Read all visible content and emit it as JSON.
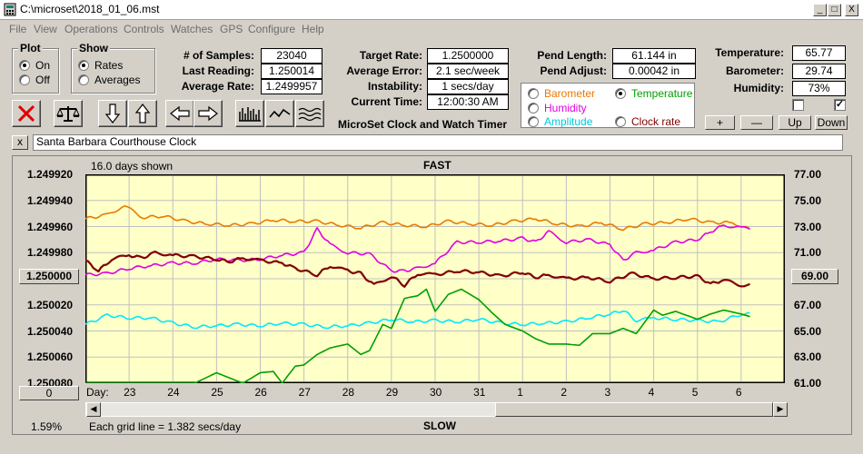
{
  "window": {
    "title": "C:\\microset\\2018_01_06.mst",
    "min_label": "_",
    "max_label": "□",
    "close_label": "X"
  },
  "menu": [
    "File",
    "View",
    "Operations",
    "Controls",
    "Watches",
    "GPS",
    "Configure",
    "Help"
  ],
  "plot_group": {
    "title": "Plot",
    "options": [
      {
        "label": "On",
        "selected": true
      },
      {
        "label": "Off",
        "selected": false
      }
    ]
  },
  "show_group": {
    "title": "Show",
    "options": [
      {
        "label": "Rates",
        "selected": true
      },
      {
        "label": "Averages",
        "selected": false
      }
    ]
  },
  "stats": {
    "samples_label": "# of Samples:",
    "samples": "23040",
    "last_reading_label": "Last Reading:",
    "last_reading": "1.250014",
    "average_rate_label": "Average Rate:",
    "average_rate": "1.2499957",
    "target_rate_label": "Target Rate:",
    "target_rate": "1.2500000",
    "average_error_label": "Average Error:",
    "average_error": "2.1 sec/week",
    "instability_label": "Instability:",
    "instability": "1 secs/day",
    "current_time_label": "Current Time:",
    "current_time": "12:00:30 AM",
    "app_name": "MicroSet Clock and Watch Timer",
    "pend_length_label": "Pend Length:",
    "pend_length": "61.144 in",
    "pend_adjust_label": "Pend Adjust:",
    "pend_adjust": "0.00042 in",
    "temperature_label": "Temperature:",
    "temperature": "65.77",
    "barometer_label": "Barometer:",
    "barometer": "29.74",
    "humidity_label": "Humidity:",
    "humidity": "73%"
  },
  "sensor_options": [
    {
      "label": "Barometer",
      "color": "#e87a00",
      "selected": false
    },
    {
      "label": "Temperature",
      "color": "#00a000",
      "selected": true
    },
    {
      "label": "Humidity",
      "color": "#e000e0",
      "selected": false
    },
    {
      "label": "Clock rate",
      "color": "#800000",
      "selected": false
    },
    {
      "label": "Amplitude",
      "color": "#00c8e0",
      "selected": false
    }
  ],
  "right_checks": [
    {
      "checked": false
    },
    {
      "checked": true
    }
  ],
  "scale_buttons": [
    "+",
    "—",
    "Up",
    "Down"
  ],
  "clock_name": {
    "close": "x",
    "value": "Santa Barbara Courthouse Clock"
  },
  "chart_header": {
    "days_shown": "16.0 days shown",
    "fast": "FAST",
    "slow": "SLOW"
  },
  "chart_footer": {
    "percent": "1.59%",
    "grid_note": "Each grid line = 1.382 secs/day",
    "day_label": "Day:",
    "zero_button": "0"
  },
  "left_buttons": {
    "center_value": "1.250000",
    "right_value": "69.00"
  },
  "colors": {
    "plot_bg": "#ffffc8",
    "grid": "#c0c0c0",
    "barometer": "#e87a00",
    "humidity": "#e000e0",
    "clock_rate": "#800000",
    "amplitude": "#00e8ff",
    "temperature": "#00a000"
  },
  "chart_data": {
    "type": "line",
    "y_left_ticks": [
      "1.249920",
      "1.249940",
      "1.249960",
      "1.249980",
      "1.250000",
      "1.250020",
      "1.250040",
      "1.250060",
      "1.250080"
    ],
    "y_right_ticks": [
      "77.00",
      "75.00",
      "73.00",
      "71.00",
      "69.00",
      "67.00",
      "65.00",
      "63.00",
      "61.00"
    ],
    "x_days": [
      "23",
      "24",
      "25",
      "26",
      "27",
      "28",
      "29",
      "30",
      "31",
      "1",
      "2",
      "3",
      "4",
      "5",
      "6"
    ],
    "y_right_range": [
      61,
      77
    ],
    "x_range": [
      22.0,
      38.0
    ],
    "series": [
      {
        "name": "Barometer",
        "color": "#e87a00",
        "x": [
          22.0,
          22.5,
          22.9,
          23.3,
          23.8,
          24.3,
          24.8,
          25.3,
          25.8,
          26.3,
          26.8,
          27.3,
          27.8,
          28.3,
          28.8,
          29.3,
          29.8,
          30.3,
          30.8,
          31.3,
          31.8,
          32.3,
          32.8,
          33.3,
          33.8,
          34.3,
          34.8,
          35.3,
          35.8,
          36.3,
          36.8,
          37.2
        ],
        "y": [
          73.6,
          73.9,
          74.6,
          73.7,
          73.8,
          73.4,
          73.2,
          73.1,
          73.2,
          73.5,
          73.4,
          73.4,
          73.1,
          72.9,
          73.3,
          73.1,
          73.0,
          73.4,
          73.2,
          73.1,
          73.4,
          73.6,
          73.2,
          73.0,
          73.3,
          72.8,
          73.2,
          73.3,
          73.6,
          73.3,
          73.3,
          72.8
        ]
      },
      {
        "name": "Humidity",
        "color": "#e000e0",
        "x": [
          22.0,
          22.5,
          23.0,
          23.5,
          24.0,
          24.5,
          25.0,
          25.5,
          26.0,
          26.5,
          27.0,
          27.3,
          27.6,
          28.0,
          28.5,
          29.0,
          29.3,
          29.6,
          30.0,
          30.5,
          31.0,
          31.5,
          32.0,
          32.3,
          32.6,
          33.0,
          33.5,
          34.0,
          34.3,
          34.6,
          35.0,
          35.5,
          36.0,
          36.3,
          36.6,
          37.0,
          37.2
        ],
        "y": [
          69.3,
          69.4,
          69.8,
          70.0,
          70.2,
          70.2,
          70.5,
          70.4,
          70.5,
          70.8,
          71.0,
          72.8,
          71.6,
          71.0,
          70.9,
          69.6,
          69.6,
          69.8,
          70.2,
          71.8,
          71.8,
          71.9,
          72.1,
          71.8,
          72.6,
          71.8,
          72.0,
          71.6,
          70.4,
          71.0,
          71.2,
          71.8,
          72.0,
          72.6,
          73.1,
          72.9,
          72.8
        ]
      },
      {
        "name": "Clock rate",
        "color": "#800000",
        "x": [
          22.0,
          22.3,
          22.6,
          23.0,
          23.3,
          23.6,
          24.0,
          24.5,
          25.0,
          25.3,
          25.6,
          26.0,
          26.5,
          26.8,
          27.3,
          27.6,
          28.0,
          28.3,
          28.6,
          29.0,
          29.3,
          29.6,
          30.0,
          30.5,
          31.0,
          31.5,
          32.0,
          32.3,
          32.6,
          33.0,
          33.5,
          34.0,
          34.5,
          35.0,
          35.5,
          36.0,
          36.3,
          36.6,
          37.0,
          37.2
        ],
        "y": [
          70.4,
          69.6,
          70.5,
          70.8,
          70.6,
          71.0,
          70.8,
          70.7,
          70.5,
          70.3,
          70.6,
          70.4,
          70.2,
          69.8,
          69.3,
          70.0,
          69.6,
          69.4,
          68.5,
          69.2,
          68.5,
          69.4,
          69.3,
          69.6,
          69.5,
          69.2,
          69.5,
          69.1,
          69.3,
          69.0,
          69.1,
          68.8,
          69.4,
          69.0,
          69.1,
          69.2,
          68.6,
          68.9,
          68.5,
          68.6
        ]
      },
      {
        "name": "Amplitude",
        "color": "#00e8ff",
        "x": [
          22.0,
          22.5,
          23.0,
          23.5,
          24.0,
          24.5,
          25.0,
          25.5,
          26.0,
          26.5,
          27.0,
          27.5,
          28.0,
          28.5,
          29.0,
          29.5,
          30.0,
          30.5,
          31.0,
          31.5,
          32.0,
          32.5,
          33.0,
          33.5,
          34.0,
          34.3,
          34.6,
          35.0,
          35.5,
          36.0,
          36.5,
          37.0,
          37.2
        ],
        "y": [
          65.5,
          66.2,
          66.0,
          66.0,
          65.6,
          65.3,
          65.4,
          65.5,
          65.4,
          65.6,
          65.5,
          65.3,
          65.4,
          65.6,
          65.9,
          65.7,
          65.8,
          65.7,
          65.9,
          65.6,
          65.5,
          65.6,
          65.7,
          66.0,
          66.3,
          66.6,
          65.8,
          66.0,
          65.9,
          65.8,
          65.7,
          66.3,
          66.4
        ]
      },
      {
        "name": "Temperature",
        "color": "#00a000",
        "x": [
          22.0,
          24.5,
          25.0,
          25.3,
          25.6,
          26.0,
          26.3,
          26.5,
          26.8,
          27.0,
          27.3,
          27.6,
          28.0,
          28.3,
          28.5,
          28.8,
          29.0,
          29.3,
          29.6,
          29.8,
          30.0,
          30.3,
          30.6,
          31.0,
          31.3,
          31.6,
          32.0,
          32.3,
          32.6,
          33.0,
          33.3,
          33.6,
          34.0,
          34.3,
          34.6,
          35.0,
          35.2,
          35.5,
          36.0,
          36.3,
          36.6,
          37.0,
          37.2
        ],
        "y": [
          61.0,
          61.0,
          61.8,
          61.4,
          61.0,
          61.8,
          61.9,
          61.0,
          62.3,
          62.4,
          63.2,
          63.7,
          64.0,
          63.2,
          63.5,
          65.5,
          65.2,
          67.5,
          67.7,
          68.2,
          66.5,
          67.8,
          68.2,
          67.4,
          66.4,
          65.5,
          65.0,
          64.4,
          64.0,
          64.0,
          63.9,
          64.8,
          64.8,
          65.2,
          64.8,
          66.6,
          66.2,
          66.5,
          65.9,
          66.3,
          66.6,
          66.3,
          66.1
        ]
      }
    ]
  }
}
